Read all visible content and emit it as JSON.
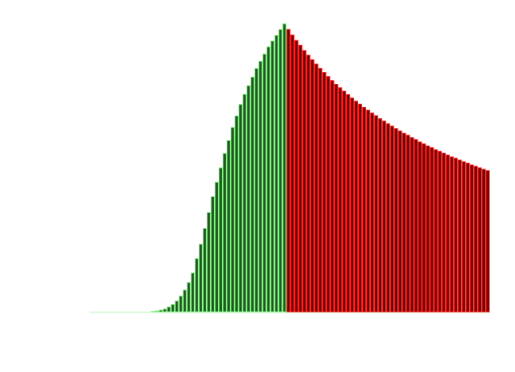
{
  "chart_data": {
    "type": "bar",
    "title": "",
    "xlabel": "",
    "ylabel": "",
    "ylim": [
      0,
      100
    ],
    "grid": false,
    "colors": {
      "rising_fill": "#1d5a1d",
      "rising_stroke": "#86f286",
      "falling_fill": "#760000",
      "falling_stroke": "#ff2222",
      "baseline": "#d8f8d8"
    },
    "series": [
      {
        "name": "rising",
        "color": "#1d5a1d",
        "start_index": 0,
        "values": [
          0,
          0,
          0,
          0,
          0,
          0,
          0,
          0,
          0,
          0,
          0,
          0,
          0,
          0,
          0,
          0.1,
          0.3,
          0.6,
          1.0,
          1.7,
          2.6,
          3.8,
          5.5,
          7.6,
          10.2,
          13.5,
          18.5,
          23.5,
          29,
          34.5,
          40,
          45,
          50,
          55,
          59.5,
          64,
          68,
          72,
          75.5,
          78.5,
          81.5,
          84.5,
          87,
          89.5,
          92,
          94,
          96,
          98,
          100
        ]
      },
      {
        "name": "falling",
        "color": "#760000",
        "start_index": 49,
        "values": [
          98.0,
          96.1,
          94.2,
          92.5,
          90.7,
          89.1,
          87.5,
          86.0,
          84.5,
          83.1,
          81.7,
          80.3,
          79.0,
          77.8,
          76.6,
          75.4,
          74.2,
          73.1,
          72.1,
          71.0,
          70.0,
          69.0,
          68.1,
          67.1,
          66.2,
          65.3,
          64.5,
          63.6,
          62.8,
          62.0,
          61.3,
          60.5,
          59.8,
          59.0,
          58.3,
          57.6,
          57.0,
          56.3,
          55.7,
          55.1,
          54.4,
          53.8,
          53.3,
          52.7,
          52.1,
          51.6,
          51.0,
          50.5,
          50.0,
          49.5,
          49.0
        ]
      }
    ]
  }
}
